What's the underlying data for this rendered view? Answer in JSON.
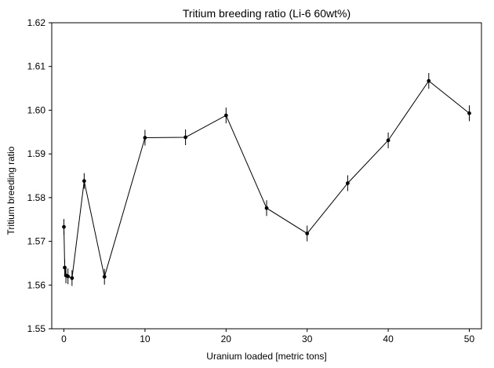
{
  "chart_data": {
    "type": "scatter",
    "title": "Tritium breeding ratio (Li-6 60wt%)",
    "xlabel": "Uranium loaded [metric tons]",
    "ylabel": "Tritium breeding ratio",
    "xlim": [
      -1.5,
      51.5
    ],
    "ylim": [
      1.55,
      1.62
    ],
    "xticks": [
      0,
      10,
      20,
      30,
      40,
      50
    ],
    "yticks": [
      1.55,
      1.56,
      1.57,
      1.58,
      1.59,
      1.6,
      1.61,
      1.62
    ],
    "xtick_labels": [
      "0",
      "10",
      "20",
      "30",
      "40",
      "50"
    ],
    "ytick_labels": [
      "1.55",
      "1.56",
      "1.57",
      "1.58",
      "1.59",
      "1.60",
      "1.61",
      "1.62"
    ],
    "grid": false,
    "legend": "none",
    "series": [
      {
        "line_color": "#000000",
        "marker_color": "#000000",
        "points": [
          {
            "x": 0.0,
            "y": 1.5733,
            "err": 0.0018
          },
          {
            "x": 0.1,
            "y": 1.564,
            "err": 0.0018
          },
          {
            "x": 0.25,
            "y": 1.5622,
            "err": 0.0018
          },
          {
            "x": 0.5,
            "y": 1.562,
            "err": 0.0018
          },
          {
            "x": 1.0,
            "y": 1.5616,
            "err": 0.0018
          },
          {
            "x": 2.5,
            "y": 1.5838,
            "err": 0.0018
          },
          {
            "x": 5.0,
            "y": 1.5619,
            "err": 0.0018
          },
          {
            "x": 10.0,
            "y": 1.5937,
            "err": 0.0018
          },
          {
            "x": 15.0,
            "y": 1.5938,
            "err": 0.0018
          },
          {
            "x": 20.0,
            "y": 1.5988,
            "err": 0.0018
          },
          {
            "x": 25.0,
            "y": 1.5776,
            "err": 0.0018
          },
          {
            "x": 30.0,
            "y": 1.5718,
            "err": 0.0018
          },
          {
            "x": 35.0,
            "y": 1.5833,
            "err": 0.0018
          },
          {
            "x": 40.0,
            "y": 1.5931,
            "err": 0.0018
          },
          {
            "x": 45.0,
            "y": 1.6067,
            "err": 0.0018
          },
          {
            "x": 50.0,
            "y": 1.5993,
            "err": 0.0018
          }
        ]
      }
    ]
  }
}
